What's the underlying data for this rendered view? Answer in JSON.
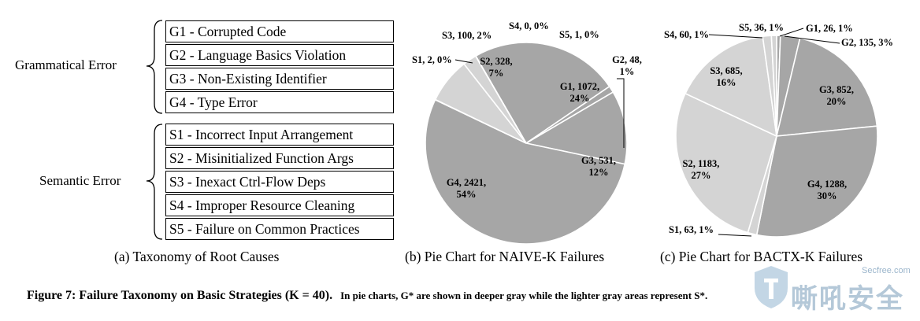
{
  "taxonomy": {
    "grammatical_label": "Grammatical Error",
    "semantic_label": "Semantic Error",
    "grammatical_items": [
      "G1 - Corrupted Code",
      "G2 - Language Basics Violation",
      "G3 - Non-Existing Identifier",
      "G4 - Type Error"
    ],
    "semantic_items": [
      "S1 - Incorrect Input Arrangement",
      "S2 - Misinitialized Function Args",
      "S3 - Inexact Ctrl-Flow Deps",
      "S4 - Improper Resource Cleaning",
      "S5 - Failure on Common Practices"
    ],
    "caption": "(a) Taxonomy of Root Causes"
  },
  "colors": {
    "grammatical": "#a6a6a6",
    "semantic": "#d4d4d4",
    "stroke": "#ffffff"
  },
  "chart_data": [
    {
      "type": "pie",
      "title": "(b) Pie Chart for NAIVE-K Failures",
      "categories": [
        "G1",
        "G2",
        "G3",
        "G4",
        "S1",
        "S2",
        "S3",
        "S4",
        "S5"
      ],
      "values": [
        1072,
        48,
        531,
        2421,
        2,
        328,
        100,
        0,
        1
      ],
      "percents": [
        "24%",
        "1%",
        "12%",
        "54%",
        "0%",
        "7%",
        "2%",
        "0%",
        "0%"
      ],
      "labels": [
        {
          "lines": [
            "G1, 1072,",
            "24%"
          ]
        },
        {
          "lines": [
            "G2, 48,",
            "1%"
          ]
        },
        {
          "lines": [
            "G3, 531,",
            "12%"
          ]
        },
        {
          "lines": [
            "G4, 2421,",
            "54%"
          ]
        },
        {
          "lines": [
            "S1, 2, 0%"
          ]
        },
        {
          "lines": [
            "S2, 328,",
            "7%"
          ]
        },
        {
          "lines": [
            "S3, 100, 2%"
          ]
        },
        {
          "lines": [
            "S4, 0, 0%"
          ]
        },
        {
          "lines": [
            "S5, 1, 0%"
          ]
        }
      ]
    },
    {
      "type": "pie",
      "title": "(c) Pie Chart for BACTX-K Failures",
      "categories": [
        "G1",
        "G2",
        "G3",
        "G4",
        "S1",
        "S2",
        "S3",
        "S4",
        "S5"
      ],
      "values": [
        26,
        135,
        852,
        1288,
        63,
        1183,
        685,
        60,
        36
      ],
      "percents": [
        "1%",
        "3%",
        "20%",
        "30%",
        "1%",
        "27%",
        "16%",
        "1%",
        "1%"
      ],
      "labels": [
        {
          "lines": [
            "G1, 26, 1%"
          ]
        },
        {
          "lines": [
            "G2, 135, 3%"
          ]
        },
        {
          "lines": [
            "G3, 852,",
            "20%"
          ]
        },
        {
          "lines": [
            "G4, 1288,",
            "30%"
          ]
        },
        {
          "lines": [
            "S1, 63, 1%"
          ]
        },
        {
          "lines": [
            "S2, 1183,",
            "27%"
          ]
        },
        {
          "lines": [
            "S3, 685,",
            "16%"
          ]
        },
        {
          "lines": [
            "S4, 60, 1%"
          ]
        },
        {
          "lines": [
            "S5, 36, 1%"
          ]
        }
      ]
    }
  ],
  "figure_caption": {
    "label": "Figure 7: Failure Taxonomy on Basic Strategies (K = 40).",
    "note": "In pie charts, G* are shown in deeper gray while the lighter gray areas represent S*."
  },
  "watermark": {
    "site": "Secfree.com",
    "text": "嘶吼安全"
  }
}
